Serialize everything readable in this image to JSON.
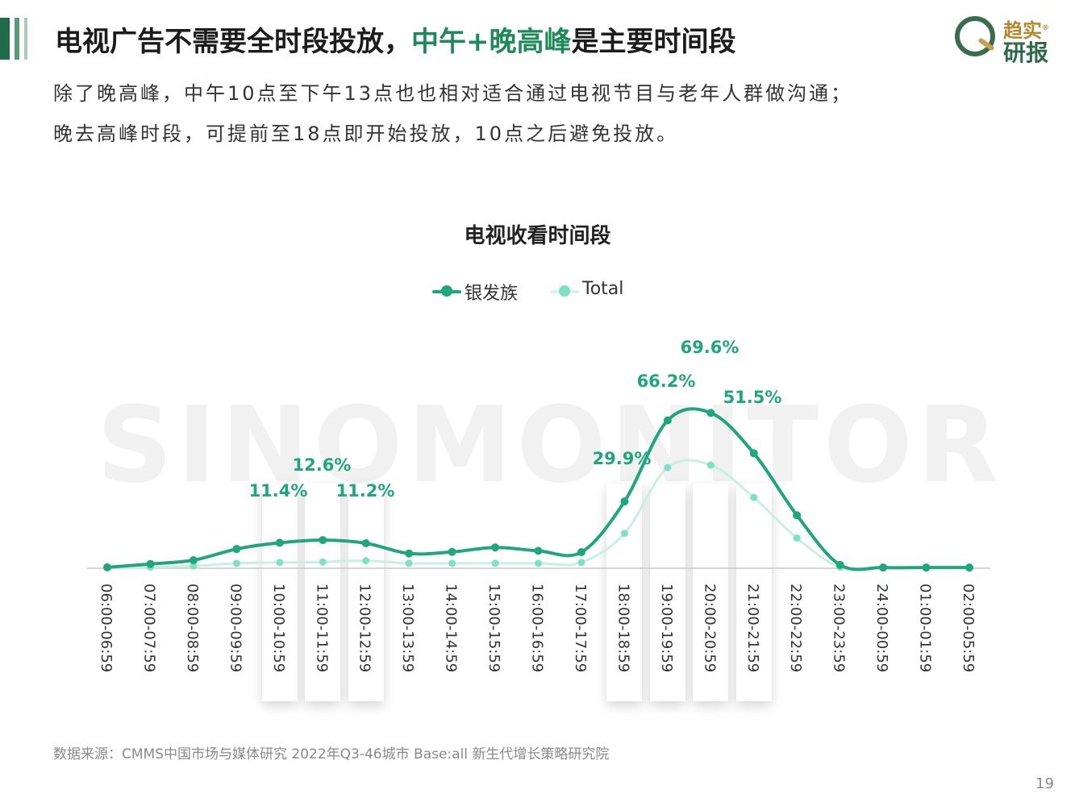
{
  "header": {
    "title_prefix": "电视广告不需要全时段投放，",
    "title_highlight": "中午+晚高峰",
    "title_suffix": "是主要时间段",
    "subtitle_line1": "除了晚高峰，中午10点至下午13点也也相对适合通过电视节目与老年人群做沟通；",
    "subtitle_line2": "晚去高峰时段，可提前至18点即开始投放，10点之后避免投放。"
  },
  "logo": {
    "text_top": "趋实",
    "text_bottom": "研报",
    "mark": "®"
  },
  "watermark": "SINOMONITOR",
  "colors": {
    "primary": "#1fa67d",
    "secondary": "#c8f0e2",
    "secondary_dot": "#7fe0c4",
    "title_accent": "#1e8a5a"
  },
  "chart_data": {
    "type": "line",
    "title": "电视收看时间段",
    "legend_position": "top-center",
    "grid": false,
    "ylim": [
      0,
      80
    ],
    "categories": [
      "06:00-06:59",
      "07:00-07:59",
      "08:00-08:59",
      "09:00-09:59",
      "10:00-10:59",
      "11:00-11:59",
      "12:00-12:59",
      "13:00-13:59",
      "14:00-14:59",
      "15:00-15:59",
      "16:00-16:59",
      "17:00-17:59",
      "18:00-18:59",
      "19:00-19:59",
      "20:00-20:59",
      "21:00-21:59",
      "22:00-22:59",
      "23:00-23:59",
      "24:00-00:59",
      "01:00-01:59",
      "02:00-05:59"
    ],
    "highlighted_categories": [
      "10:00-10:59",
      "11:00-11:59",
      "12:00-12:59",
      "18:00-18:59",
      "19:00-19:59",
      "20:00-20:59",
      "21:00-21:59"
    ],
    "series": [
      {
        "name": "银发族",
        "values": [
          0.4,
          1.9,
          3.6,
          8.6,
          11.4,
          12.6,
          11.2,
          6.6,
          7.3,
          9.3,
          7.8,
          7.2,
          29.9,
          66.2,
          69.6,
          51.5,
          23.7,
          1.5,
          0.3,
          0.3,
          0.3
        ],
        "labels": [
          "",
          "",
          "",
          "",
          "11.4%",
          "12.6%",
          "11.2%",
          "",
          "",
          "",
          "",
          "",
          "29.9%",
          "66.2%",
          "69.6%",
          "51.5%",
          "",
          "",
          "",
          "",
          ""
        ]
      },
      {
        "name": "Total",
        "values": [
          0.2,
          0.5,
          1.0,
          2.2,
          2.6,
          2.8,
          3.4,
          2.2,
          2.2,
          2.2,
          2.2,
          2.6,
          15.6,
          45.1,
          46.2,
          31.7,
          13.5,
          0.5,
          0.2,
          0.2,
          0.2
        ]
      }
    ]
  },
  "footer": {
    "source": "数据来源：CMMS中国市场与媒体研究 2022年Q3-46城市 Base:all  新生代增长策略研究院",
    "page_number": "19"
  }
}
